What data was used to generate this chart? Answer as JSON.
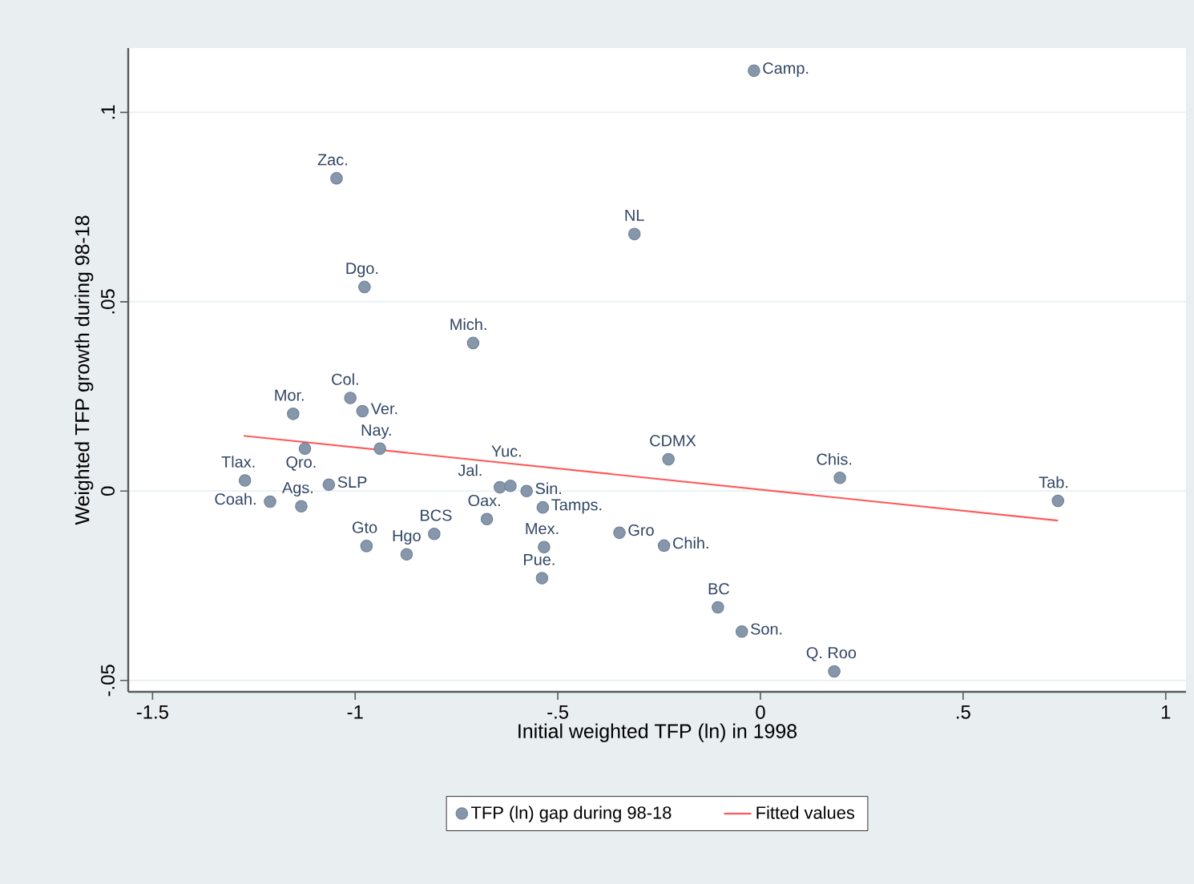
{
  "chart_data": {
    "type": "scatter",
    "xlabel": "Initial weighted TFP (ln) in 1998",
    "ylabel": "Weighted TFP growth during 98-18",
    "xlim": [
      -1.56,
      1.05
    ],
    "ylim": [
      -0.053,
      0.117
    ],
    "xticks": [
      {
        "value": -1.5,
        "label": "-1.5"
      },
      {
        "value": -1,
        "label": "-1"
      },
      {
        "value": -0.5,
        "label": "-.5"
      },
      {
        "value": 0,
        "label": "0"
      },
      {
        "value": 0.5,
        "label": ".5"
      },
      {
        "value": 1,
        "label": "1"
      }
    ],
    "yticks": [
      {
        "value": -0.05,
        "label": "-.05"
      },
      {
        "value": 0,
        "label": "0"
      },
      {
        "value": 0.05,
        "label": ".05"
      },
      {
        "value": 0.1,
        "label": ".1"
      }
    ],
    "grid": "y",
    "legend": "bottom",
    "series": [
      {
        "name": "TFP (ln) gap during 98-18",
        "type": "scatter",
        "marker": "circle",
        "color": "#8797ab",
        "x": [
          -0.016,
          -1.046,
          -0.311,
          -0.977,
          -0.709,
          -1.153,
          -1.012,
          -0.982,
          -1.124,
          -0.939,
          -1.272,
          -1.21,
          -1.133,
          -1.065,
          -0.972,
          -0.873,
          -0.805,
          -0.675,
          -0.643,
          -0.617,
          -0.577,
          -0.537,
          -0.534,
          -0.539,
          -0.348,
          -0.238,
          -0.227,
          0.196,
          0.734,
          -0.105,
          -0.046,
          0.182
        ],
        "values": [
          0.111,
          0.0826,
          0.0679,
          0.0539,
          0.0391,
          0.0204,
          0.0246,
          0.0211,
          0.0112,
          0.0112,
          0.0028,
          -0.0028,
          -0.004,
          0.0017,
          -0.0145,
          -0.0167,
          -0.0113,
          -0.0074,
          0.001,
          0.0014,
          0.0,
          -0.0043,
          -0.0148,
          -0.023,
          -0.011,
          -0.0144,
          0.0084,
          0.0035,
          -0.0026,
          -0.0307,
          -0.0371,
          -0.0476
        ]
      },
      {
        "name": "Fitted values",
        "type": "line",
        "color": "#ff5a5a",
        "line_style": "solid",
        "x": [
          -1.275,
          0.734
        ],
        "values": [
          0.0146,
          -0.0078
        ]
      }
    ],
    "annotations": [
      {
        "text": "Camp.",
        "x": -0.016,
        "y": 0.111
      },
      {
        "text": "Zac.",
        "x": -1.046,
        "y": 0.0826
      },
      {
        "text": "NL",
        "x": -0.311,
        "y": 0.0679
      },
      {
        "text": "Dgo.",
        "x": -0.977,
        "y": 0.0539
      },
      {
        "text": "Mich.",
        "x": -0.709,
        "y": 0.0391
      },
      {
        "text": "Mor.",
        "x": -1.153,
        "y": 0.0204
      },
      {
        "text": "Col.",
        "x": -1.012,
        "y": 0.0246
      },
      {
        "text": "Ver.",
        "x": -0.982,
        "y": 0.0211
      },
      {
        "text": "Qro.",
        "x": -1.124,
        "y": 0.0112
      },
      {
        "text": "Nay.",
        "x": -0.939,
        "y": 0.0112
      },
      {
        "text": "Tlax.",
        "x": -1.272,
        "y": 0.0028
      },
      {
        "text": "Coah.",
        "x": -1.21,
        "y": -0.0028
      },
      {
        "text": "Ags.",
        "x": -1.133,
        "y": -0.004
      },
      {
        "text": "SLP",
        "x": -1.065,
        "y": 0.0017
      },
      {
        "text": "Gto",
        "x": -0.972,
        "y": -0.0145
      },
      {
        "text": "Hgo",
        "x": -0.873,
        "y": -0.0167
      },
      {
        "text": "BCS",
        "x": -0.805,
        "y": -0.0113
      },
      {
        "text": "Oax.",
        "x": -0.675,
        "y": -0.0074
      },
      {
        "text": "Jal.",
        "x": -0.643,
        "y": 0.001
      },
      {
        "text": "Yuc.",
        "x": -0.617,
        "y": 0.0014
      },
      {
        "text": "Sin.",
        "x": -0.577,
        "y": 0.0
      },
      {
        "text": "Tamps.",
        "x": -0.537,
        "y": -0.0043
      },
      {
        "text": "Mex.",
        "x": -0.534,
        "y": -0.0148
      },
      {
        "text": "Pue.",
        "x": -0.539,
        "y": -0.023
      },
      {
        "text": "Gro",
        "x": -0.348,
        "y": -0.011
      },
      {
        "text": "Chih.",
        "x": -0.238,
        "y": -0.0144
      },
      {
        "text": "CDMX",
        "x": -0.227,
        "y": 0.0084
      },
      {
        "text": "Chis.",
        "x": 0.196,
        "y": 0.0035
      },
      {
        "text": "Tab.",
        "x": 0.734,
        "y": -0.0026
      },
      {
        "text": "BC",
        "x": -0.105,
        "y": -0.0307
      },
      {
        "text": "Son.",
        "x": -0.046,
        "y": -0.0371
      },
      {
        "text": "Q. Roo",
        "x": 0.182,
        "y": -0.0476
      }
    ]
  }
}
